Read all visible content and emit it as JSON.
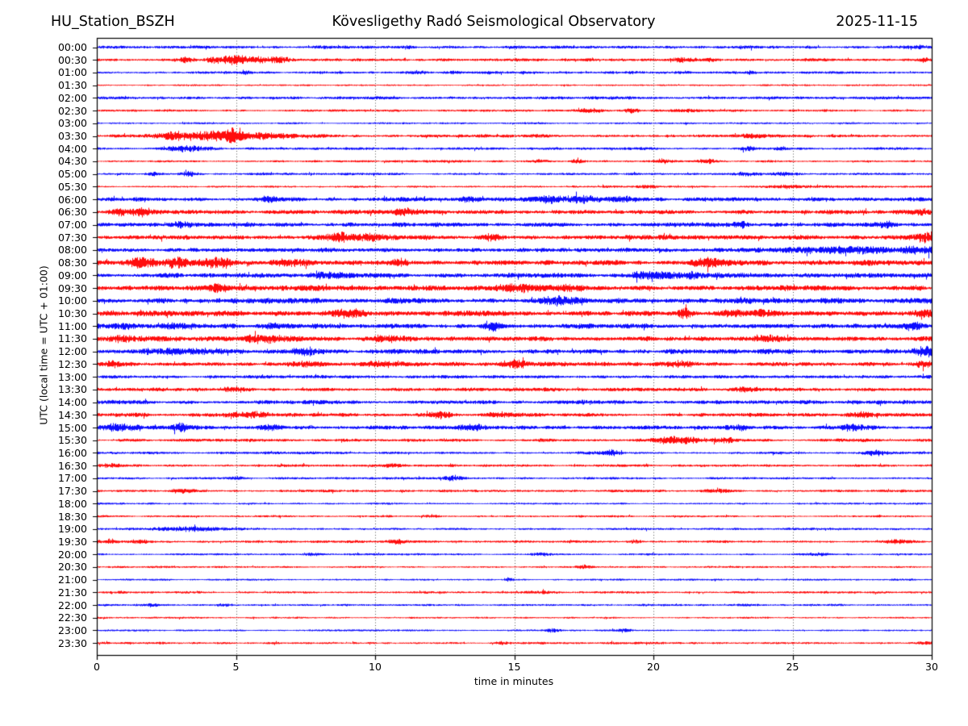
{
  "header": {
    "station": "HU_Station_BSZH",
    "title": "Kövesligethy Radó Seismological Observatory",
    "date": "2025-11-15"
  },
  "chart_data": {
    "type": "line",
    "subtype": "helicorder-seismogram",
    "title": "Kövesligethy Radó Seismological Observatory",
    "xlabel": "time in minutes",
    "ylabel": "UTC (local time = UTC + 01:00)",
    "xlim": [
      0,
      30
    ],
    "x_ticks": [
      0,
      5,
      10,
      15,
      20,
      25,
      30
    ],
    "grid_minutes": [
      5,
      10,
      15,
      20,
      25
    ],
    "grid_style": "dotted",
    "grid_color": "#555555",
    "axis_color": "#000000",
    "trace_minutes_per_line": 30,
    "trace_color_even": "#0000ff",
    "trace_color_odd": "#ff0000",
    "traces": [
      {
        "utc": "00:00",
        "color": "#0000ff",
        "noise": 1.3,
        "events": [
          {
            "t": 11.2,
            "w": 0.15,
            "a": 1.2
          },
          {
            "t": 25.6,
            "w": 0.2,
            "a": 1.5
          },
          {
            "t": 29.5,
            "w": 0.3,
            "a": 1.2
          }
        ]
      },
      {
        "utc": "00:30",
        "color": "#ff0000",
        "noise": 1.3,
        "events": [
          {
            "t": 3.2,
            "w": 0.25,
            "a": 2.5
          },
          {
            "t": 4.2,
            "w": 0.2,
            "a": 2.5
          },
          {
            "t": 5.0,
            "w": 0.35,
            "a": 5.0
          },
          {
            "t": 5.9,
            "w": 0.3,
            "a": 2.5
          },
          {
            "t": 6.6,
            "w": 0.3,
            "a": 2.0
          },
          {
            "t": 21.0,
            "w": 0.3,
            "a": 2.0
          },
          {
            "t": 22.0,
            "w": 0.15,
            "a": 2.0
          },
          {
            "t": 29.7,
            "w": 0.15,
            "a": 2.2
          }
        ]
      },
      {
        "utc": "01:00",
        "color": "#0000ff",
        "noise": 1.1,
        "events": [
          {
            "t": 5.3,
            "w": 0.15,
            "a": 1.8
          },
          {
            "t": 11.5,
            "w": 0.3,
            "a": 1.5
          },
          {
            "t": 12.8,
            "w": 0.2,
            "a": 1.2
          },
          {
            "t": 19.5,
            "w": 0.3,
            "a": 1.0
          },
          {
            "t": 21.0,
            "w": 0.2,
            "a": 1.0
          },
          {
            "t": 23.5,
            "w": 0.15,
            "a": 1.0
          }
        ]
      },
      {
        "utc": "01:30",
        "color": "#ff0000",
        "noise": 0.8,
        "events": []
      },
      {
        "utc": "02:00",
        "color": "#0000ff",
        "noise": 1.3,
        "events": []
      },
      {
        "utc": "02:30",
        "color": "#ff0000",
        "noise": 1.0,
        "events": [
          {
            "t": 17.8,
            "w": 0.3,
            "a": 1.5
          },
          {
            "t": 19.2,
            "w": 0.2,
            "a": 1.8
          },
          {
            "t": 21.2,
            "w": 0.3,
            "a": 1.2
          }
        ]
      },
      {
        "utc": "03:00",
        "color": "#0000ff",
        "noise": 0.8,
        "events": []
      },
      {
        "utc": "03:30",
        "color": "#ff0000",
        "noise": 1.4,
        "events": [
          {
            "t": 2.6,
            "w": 0.3,
            "a": 3.0
          },
          {
            "t": 3.4,
            "w": 0.4,
            "a": 3.5
          },
          {
            "t": 4.3,
            "w": 0.35,
            "a": 5.0
          },
          {
            "t": 5.0,
            "w": 0.25,
            "a": 7.0
          },
          {
            "t": 5.7,
            "w": 0.4,
            "a": 3.0
          },
          {
            "t": 6.6,
            "w": 0.5,
            "a": 1.8
          },
          {
            "t": 23.5,
            "w": 0.3,
            "a": 1.5
          }
        ]
      },
      {
        "utc": "04:00",
        "color": "#0000ff",
        "noise": 1.1,
        "events": [
          {
            "t": 3.2,
            "w": 0.55,
            "a": 2.8
          },
          {
            "t": 23.4,
            "w": 0.25,
            "a": 2.0
          },
          {
            "t": 24.6,
            "w": 0.2,
            "a": 1.5
          }
        ]
      },
      {
        "utc": "04:30",
        "color": "#ff0000",
        "noise": 1.0,
        "events": [
          {
            "t": 15.9,
            "w": 0.2,
            "a": 1.5
          },
          {
            "t": 17.3,
            "w": 0.2,
            "a": 1.5
          },
          {
            "t": 20.3,
            "w": 0.2,
            "a": 1.8
          },
          {
            "t": 21.9,
            "w": 0.25,
            "a": 1.8
          }
        ]
      },
      {
        "utc": "05:00",
        "color": "#0000ff",
        "noise": 1.0,
        "events": [
          {
            "t": 2.0,
            "w": 0.2,
            "a": 1.5
          },
          {
            "t": 3.3,
            "w": 0.25,
            "a": 2.2
          },
          {
            "t": 23.3,
            "w": 0.3,
            "a": 2.0
          },
          {
            "t": 24.6,
            "w": 0.3,
            "a": 1.7
          }
        ]
      },
      {
        "utc": "05:30",
        "color": "#ff0000",
        "noise": 0.9,
        "events": [
          {
            "t": 19.8,
            "w": 0.25,
            "a": 1.3
          },
          {
            "t": 24.8,
            "w": 0.3,
            "a": 1.2
          },
          {
            "t": 27.0,
            "w": 1.5,
            "a": 0.7
          }
        ]
      },
      {
        "utc": "06:00",
        "color": "#0000ff",
        "noise": 1.9,
        "events": [
          {
            "t": 6.2,
            "w": 0.3,
            "a": 2.0
          },
          {
            "t": 13.3,
            "w": 0.25,
            "a": 2.8
          },
          {
            "t": 16.3,
            "w": 0.4,
            "a": 2.8
          },
          {
            "t": 17.5,
            "w": 0.4,
            "a": 2.5
          },
          {
            "t": 18.8,
            "w": 0.3,
            "a": 2.0
          }
        ]
      },
      {
        "utc": "06:30",
        "color": "#ff0000",
        "noise": 1.9,
        "events": [
          {
            "t": 0.8,
            "w": 0.3,
            "a": 2.5
          },
          {
            "t": 1.6,
            "w": 0.25,
            "a": 3.5
          },
          {
            "t": 11.1,
            "w": 0.3,
            "a": 2.5
          },
          {
            "t": 29.6,
            "w": 0.3,
            "a": 2.5
          }
        ]
      },
      {
        "utc": "07:00",
        "color": "#0000ff",
        "noise": 1.9,
        "events": [
          {
            "t": 3.1,
            "w": 0.3,
            "a": 2.8
          },
          {
            "t": 23.1,
            "w": 0.25,
            "a": 2.5
          },
          {
            "t": 28.4,
            "w": 0.3,
            "a": 2.5
          }
        ]
      },
      {
        "utc": "07:30",
        "color": "#ff0000",
        "noise": 2.0,
        "events": [
          {
            "t": 8.8,
            "w": 0.4,
            "a": 3.5
          },
          {
            "t": 9.9,
            "w": 0.3,
            "a": 2.5
          },
          {
            "t": 14.2,
            "w": 0.3,
            "a": 3.0
          },
          {
            "t": 29.8,
            "w": 0.3,
            "a": 3.5
          }
        ]
      },
      {
        "utc": "08:00",
        "color": "#0000ff",
        "noise": 1.9,
        "events": [
          {
            "t": 25.5,
            "w": 0.8,
            "a": 2.2
          },
          {
            "t": 27.5,
            "w": 1.0,
            "a": 2.5
          },
          {
            "t": 29.5,
            "w": 0.5,
            "a": 3.0
          }
        ]
      },
      {
        "utc": "08:30",
        "color": "#ff0000",
        "noise": 2.3,
        "events": [
          {
            "t": 1.6,
            "w": 0.3,
            "a": 4.0
          },
          {
            "t": 2.9,
            "w": 0.35,
            "a": 4.0
          },
          {
            "t": 4.3,
            "w": 0.4,
            "a": 4.5
          },
          {
            "t": 7.0,
            "w": 0.4,
            "a": 3.0
          },
          {
            "t": 10.9,
            "w": 0.3,
            "a": 3.0
          },
          {
            "t": 22.0,
            "w": 0.35,
            "a": 3.5
          }
        ]
      },
      {
        "utc": "09:00",
        "color": "#0000ff",
        "noise": 2.1,
        "events": [
          {
            "t": 8.3,
            "w": 0.5,
            "a": 3.0
          },
          {
            "t": 19.8,
            "w": 0.6,
            "a": 3.2
          },
          {
            "t": 21.3,
            "w": 0.4,
            "a": 2.5
          }
        ]
      },
      {
        "utc": "09:30",
        "color": "#ff0000",
        "noise": 2.3,
        "events": [
          {
            "t": 4.3,
            "w": 0.4,
            "a": 3.0
          },
          {
            "t": 15.3,
            "w": 0.6,
            "a": 3.0
          },
          {
            "t": 17.0,
            "w": 0.3,
            "a": 2.5
          }
        ]
      },
      {
        "utc": "10:00",
        "color": "#0000ff",
        "noise": 2.4,
        "events": [
          {
            "t": 16.5,
            "w": 0.4,
            "a": 2.5
          }
        ]
      },
      {
        "utc": "10:30",
        "color": "#ff0000",
        "noise": 2.3,
        "events": [
          {
            "t": 9.0,
            "w": 0.4,
            "a": 3.0
          },
          {
            "t": 21.1,
            "w": 0.2,
            "a": 4.5
          },
          {
            "t": 22.8,
            "w": 0.3,
            "a": 3.0
          },
          {
            "t": 24.0,
            "w": 0.3,
            "a": 3.0
          },
          {
            "t": 29.7,
            "w": 0.3,
            "a": 3.5
          }
        ]
      },
      {
        "utc": "11:00",
        "color": "#0000ff",
        "noise": 2.1,
        "events": [
          {
            "t": 1.0,
            "w": 0.7,
            "a": 2.0
          },
          {
            "t": 3.0,
            "w": 0.35,
            "a": 3.5
          },
          {
            "t": 6.3,
            "w": 0.3,
            "a": 2.5
          },
          {
            "t": 14.3,
            "w": 0.2,
            "a": 4.0
          },
          {
            "t": 29.3,
            "w": 0.3,
            "a": 3.5
          }
        ]
      },
      {
        "utc": "11:30",
        "color": "#ff0000",
        "noise": 2.1,
        "events": [
          {
            "t": 1.0,
            "w": 0.4,
            "a": 3.0
          },
          {
            "t": 6.0,
            "w": 0.5,
            "a": 4.0
          },
          {
            "t": 10.5,
            "w": 0.4,
            "a": 3.0
          },
          {
            "t": 24.0,
            "w": 0.4,
            "a": 2.5
          }
        ]
      },
      {
        "utc": "12:00",
        "color": "#0000ff",
        "noise": 2.1,
        "events": [
          {
            "t": 3.0,
            "w": 1.0,
            "a": 2.5
          },
          {
            "t": 7.5,
            "w": 0.4,
            "a": 3.0
          },
          {
            "t": 29.8,
            "w": 0.3,
            "a": 4.0
          }
        ]
      },
      {
        "utc": "12:30",
        "color": "#ff0000",
        "noise": 1.9,
        "events": [
          {
            "t": 0.6,
            "w": 0.3,
            "a": 3.5
          },
          {
            "t": 7.5,
            "w": 0.4,
            "a": 2.0
          },
          {
            "t": 10.2,
            "w": 0.4,
            "a": 2.5
          },
          {
            "t": 15.0,
            "w": 0.3,
            "a": 4.0
          },
          {
            "t": 21.0,
            "w": 0.4,
            "a": 3.0
          },
          {
            "t": 29.6,
            "w": 0.3,
            "a": 3.0
          }
        ]
      },
      {
        "utc": "13:00",
        "color": "#0000ff",
        "noise": 1.4,
        "events": []
      },
      {
        "utc": "13:30",
        "color": "#ff0000",
        "noise": 1.5,
        "events": [
          {
            "t": 5.0,
            "w": 0.3,
            "a": 2.0
          },
          {
            "t": 23.3,
            "w": 0.3,
            "a": 2.2
          }
        ]
      },
      {
        "utc": "14:00",
        "color": "#0000ff",
        "noise": 1.7,
        "events": []
      },
      {
        "utc": "14:30",
        "color": "#ff0000",
        "noise": 1.7,
        "events": [
          {
            "t": 5.5,
            "w": 0.6,
            "a": 2.5
          },
          {
            "t": 12.3,
            "w": 0.3,
            "a": 3.0
          },
          {
            "t": 14.5,
            "w": 0.3,
            "a": 2.5
          },
          {
            "t": 27.5,
            "w": 0.4,
            "a": 2.0
          }
        ]
      },
      {
        "utc": "15:00",
        "color": "#0000ff",
        "noise": 1.7,
        "events": [
          {
            "t": 0.7,
            "w": 0.5,
            "a": 3.0
          },
          {
            "t": 3.0,
            "w": 0.2,
            "a": 4.5
          },
          {
            "t": 6.2,
            "w": 0.3,
            "a": 2.5
          },
          {
            "t": 13.5,
            "w": 0.4,
            "a": 2.5
          },
          {
            "t": 23.0,
            "w": 0.3,
            "a": 2.2
          },
          {
            "t": 27.0,
            "w": 0.3,
            "a": 2.2
          }
        ]
      },
      {
        "utc": "15:30",
        "color": "#ff0000",
        "noise": 1.4,
        "events": [
          {
            "t": 20.8,
            "w": 0.5,
            "a": 3.5
          },
          {
            "t": 22.5,
            "w": 0.4,
            "a": 2.5
          }
        ]
      },
      {
        "utc": "16:00",
        "color": "#0000ff",
        "noise": 1.1,
        "events": [
          {
            "t": 18.4,
            "w": 0.35,
            "a": 3.0
          },
          {
            "t": 28.0,
            "w": 0.3,
            "a": 2.2
          }
        ]
      },
      {
        "utc": "16:30",
        "color": "#ff0000",
        "noise": 1.1,
        "events": [
          {
            "t": 0.5,
            "w": 0.3,
            "a": 1.8
          },
          {
            "t": 10.6,
            "w": 0.25,
            "a": 1.8
          }
        ]
      },
      {
        "utc": "17:00",
        "color": "#0000ff",
        "noise": 1.0,
        "events": [
          {
            "t": 5.0,
            "w": 0.25,
            "a": 1.8
          },
          {
            "t": 12.8,
            "w": 0.25,
            "a": 2.2
          }
        ]
      },
      {
        "utc": "17:30",
        "color": "#ff0000",
        "noise": 1.1,
        "events": [
          {
            "t": 3.0,
            "w": 0.3,
            "a": 1.8
          },
          {
            "t": 22.3,
            "w": 0.3,
            "a": 1.8
          }
        ]
      },
      {
        "utc": "18:00",
        "color": "#0000ff",
        "noise": 0.9,
        "events": []
      },
      {
        "utc": "18:30",
        "color": "#ff0000",
        "noise": 0.9,
        "events": [
          {
            "t": 12.0,
            "w": 0.2,
            "a": 1.5
          }
        ]
      },
      {
        "utc": "19:00",
        "color": "#0000ff",
        "noise": 1.0,
        "events": [
          {
            "t": 3.1,
            "w": 0.9,
            "a": 2.2
          }
        ]
      },
      {
        "utc": "19:30",
        "color": "#ff0000",
        "noise": 1.1,
        "events": [
          {
            "t": 0.4,
            "w": 0.25,
            "a": 2.2
          },
          {
            "t": 1.5,
            "w": 0.3,
            "a": 1.8
          },
          {
            "t": 10.8,
            "w": 0.25,
            "a": 2.2
          },
          {
            "t": 19.3,
            "w": 0.2,
            "a": 1.6
          },
          {
            "t": 28.8,
            "w": 0.3,
            "a": 1.6
          }
        ]
      },
      {
        "utc": "20:00",
        "color": "#0000ff",
        "noise": 0.9,
        "events": [
          {
            "t": 7.7,
            "w": 0.2,
            "a": 1.4
          },
          {
            "t": 16.0,
            "w": 0.3,
            "a": 1.3
          },
          {
            "t": 26.0,
            "w": 0.3,
            "a": 1.2
          }
        ]
      },
      {
        "utc": "20:30",
        "color": "#ff0000",
        "noise": 0.9,
        "events": [
          {
            "t": 17.5,
            "w": 0.25,
            "a": 1.4
          }
        ]
      },
      {
        "utc": "21:00",
        "color": "#0000ff",
        "noise": 0.8,
        "events": [
          {
            "t": 14.8,
            "w": 0.15,
            "a": 2.0
          }
        ]
      },
      {
        "utc": "21:30",
        "color": "#ff0000",
        "noise": 1.0,
        "events": [
          {
            "t": 16.0,
            "w": 0.3,
            "a": 1.3
          }
        ]
      },
      {
        "utc": "22:00",
        "color": "#0000ff",
        "noise": 0.9,
        "events": [
          {
            "t": 2.0,
            "w": 0.3,
            "a": 1.4
          },
          {
            "t": 4.6,
            "w": 0.25,
            "a": 1.4
          }
        ]
      },
      {
        "utc": "22:30",
        "color": "#ff0000",
        "noise": 0.8,
        "events": []
      },
      {
        "utc": "23:00",
        "color": "#0000ff",
        "noise": 0.8,
        "events": [
          {
            "t": 16.3,
            "w": 0.25,
            "a": 1.4
          },
          {
            "t": 19.0,
            "w": 0.2,
            "a": 1.2
          }
        ]
      },
      {
        "utc": "23:30",
        "color": "#ff0000",
        "noise": 1.0,
        "events": [
          {
            "t": 14.6,
            "w": 0.2,
            "a": 1.3
          },
          {
            "t": 29.8,
            "w": 0.2,
            "a": 1.5
          }
        ]
      }
    ]
  }
}
